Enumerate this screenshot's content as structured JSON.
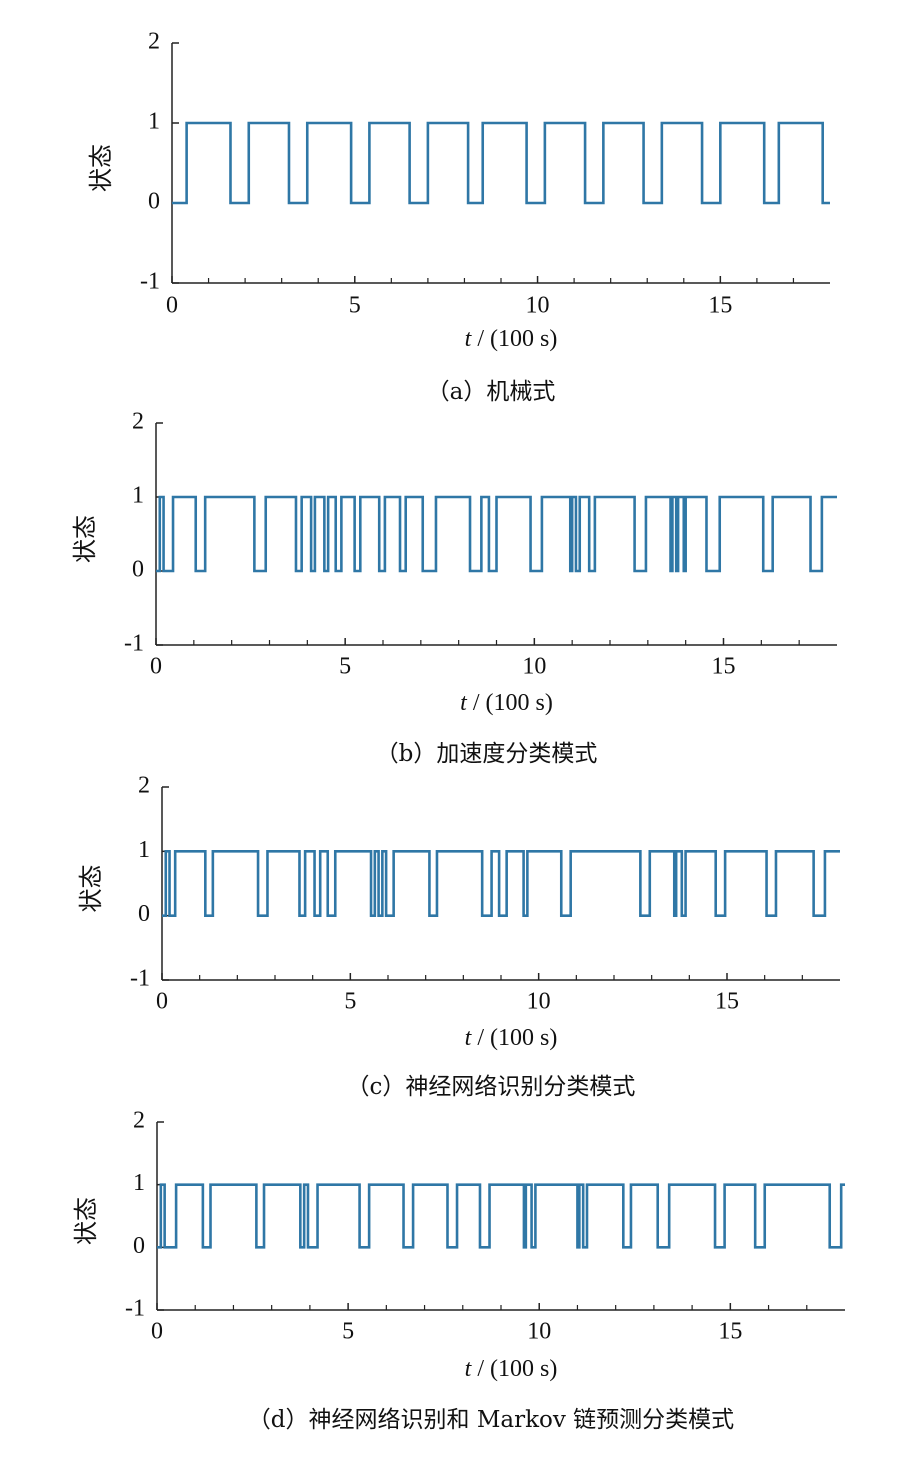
{
  "chart_data": [
    {
      "type": "line",
      "caption": "（a）机械式",
      "ylabel": "状态",
      "xlabel_var": "t",
      "xlabel_unit": "/ (100 s)",
      "xlim": [
        0,
        18
      ],
      "ylim": [
        -1,
        2
      ],
      "xticks": [
        0,
        5,
        10,
        15
      ],
      "xminor_ticks": [
        1,
        2,
        3,
        4,
        6,
        7,
        8,
        9,
        11,
        12,
        13,
        14,
        16,
        17
      ],
      "yticks": [
        -1,
        0,
        1,
        2
      ],
      "series": [
        {
          "color": "#2f77a6",
          "x": [
            0,
            0.4,
            0.4,
            1.6,
            1.6,
            2.1,
            2.1,
            3.2,
            3.2,
            3.7,
            3.7,
            4.9,
            4.9,
            5.4,
            5.4,
            6.5,
            6.5,
            7.0,
            7.0,
            8.1,
            8.1,
            8.5,
            8.5,
            9.7,
            9.7,
            10.2,
            10.2,
            11.3,
            11.3,
            11.8,
            11.8,
            12.9,
            12.9,
            13.4,
            13.4,
            14.5,
            14.5,
            15.0,
            15.0,
            16.2,
            16.2,
            16.6,
            16.6,
            17.8,
            17.8,
            18
          ],
          "values": [
            0,
            0,
            1,
            1,
            0,
            0,
            1,
            1,
            0,
            0,
            1,
            1,
            0,
            0,
            1,
            1,
            0,
            0,
            1,
            1,
            0,
            0,
            1,
            1,
            0,
            0,
            1,
            1,
            0,
            0,
            1,
            1,
            0,
            0,
            1,
            1,
            0,
            0,
            1,
            1,
            0,
            0,
            1,
            1,
            0,
            0
          ]
        }
      ]
    },
    {
      "type": "line",
      "caption": "（b）加速度分类模式",
      "ylabel": "状态",
      "xlabel_var": "t",
      "xlabel_unit": "/ (100 s)",
      "xlim": [
        0,
        18
      ],
      "ylim": [
        -1,
        2
      ],
      "xticks": [
        0,
        5,
        10,
        15
      ],
      "xminor_ticks": [
        1,
        2,
        3,
        4,
        6,
        7,
        8,
        9,
        11,
        12,
        13,
        14,
        16,
        17
      ],
      "yticks": [
        -1,
        0,
        1,
        2
      ],
      "series": [
        {
          "color": "#2f77a6",
          "x": [
            0,
            0.1,
            0.1,
            0.2,
            0.2,
            0.45,
            0.45,
            1.05,
            1.05,
            1.3,
            1.3,
            2.6,
            2.6,
            2.9,
            2.9,
            3.7,
            3.7,
            3.85,
            3.85,
            4.1,
            4.1,
            4.2,
            4.2,
            4.45,
            4.45,
            4.55,
            4.55,
            4.75,
            4.75,
            4.9,
            4.9,
            5.25,
            5.25,
            5.4,
            5.4,
            5.9,
            5.9,
            6.05,
            6.05,
            6.45,
            6.45,
            6.6,
            6.6,
            7.05,
            7.05,
            7.4,
            7.4,
            8.3,
            8.3,
            8.6,
            8.6,
            8.8,
            8.8,
            9.0,
            9.0,
            9.9,
            9.9,
            10.2,
            10.2,
            10.95,
            10.95,
            11.0,
            11.0,
            11.1,
            11.1,
            11.2,
            11.2,
            11.45,
            11.45,
            11.6,
            11.6,
            12.65,
            12.65,
            12.95,
            12.95,
            13.6,
            13.6,
            13.65,
            13.65,
            13.75,
            13.75,
            13.8,
            13.8,
            13.95,
            13.95,
            14.0,
            14.0,
            14.55,
            14.55,
            14.9,
            14.9,
            16.05,
            16.05,
            16.3,
            16.3,
            17.3,
            17.3,
            17.6,
            17.6,
            18
          ],
          "values": [
            0,
            0,
            1,
            1,
            0,
            0,
            1,
            1,
            0,
            0,
            1,
            1,
            0,
            0,
            1,
            1,
            0,
            0,
            1,
            1,
            0,
            0,
            1,
            1,
            0,
            0,
            1,
            1,
            0,
            0,
            1,
            1,
            0,
            0,
            1,
            1,
            0,
            0,
            1,
            1,
            0,
            0,
            1,
            1,
            0,
            0,
            1,
            1,
            0,
            0,
            1,
            1,
            0,
            0,
            1,
            1,
            0,
            0,
            1,
            1,
            0,
            0,
            1,
            1,
            0,
            0,
            1,
            1,
            0,
            0,
            1,
            1,
            0,
            0,
            1,
            1,
            0,
            0,
            1,
            1,
            0,
            0,
            1,
            1,
            0,
            0,
            1,
            1,
            0,
            0,
            1,
            1,
            0,
            0,
            1,
            1,
            0,
            0,
            1,
            1
          ]
        }
      ]
    },
    {
      "type": "line",
      "caption": "（c）神经网络识别分类模式",
      "ylabel": "状态",
      "xlabel_var": "t",
      "xlabel_unit": "/ (100 s)",
      "xlim": [
        0,
        18
      ],
      "ylim": [
        -1,
        2
      ],
      "xticks": [
        0,
        5,
        10,
        15
      ],
      "xminor_ticks": [
        1,
        2,
        3,
        4,
        6,
        7,
        8,
        9,
        11,
        12,
        13,
        14,
        16,
        17
      ],
      "yticks": [
        -1,
        0,
        1,
        2
      ],
      "series": [
        {
          "color": "#2f77a6",
          "x": [
            0,
            0.1,
            0.1,
            0.2,
            0.2,
            0.35,
            0.35,
            1.15,
            1.15,
            1.35,
            1.35,
            2.55,
            2.55,
            2.8,
            2.8,
            3.65,
            3.65,
            3.8,
            3.8,
            4.05,
            4.05,
            4.2,
            4.2,
            4.4,
            4.4,
            4.6,
            4.6,
            5.55,
            5.55,
            5.65,
            5.65,
            5.75,
            5.75,
            5.85,
            5.85,
            5.95,
            5.95,
            6.15,
            6.15,
            7.1,
            7.1,
            7.3,
            7.3,
            8.5,
            8.5,
            8.75,
            8.75,
            8.95,
            8.95,
            9.15,
            9.15,
            9.6,
            9.6,
            9.7,
            9.7,
            10.6,
            10.6,
            10.85,
            10.85,
            12.7,
            12.7,
            12.95,
            12.95,
            13.6,
            13.6,
            13.65,
            13.65,
            13.8,
            13.8,
            13.9,
            13.9,
            14.7,
            14.7,
            14.95,
            14.95,
            16.05,
            16.05,
            16.3,
            16.3,
            17.3,
            17.3,
            17.6,
            17.6,
            18
          ],
          "values": [
            0,
            0,
            1,
            1,
            0,
            0,
            1,
            1,
            0,
            0,
            1,
            1,
            0,
            0,
            1,
            1,
            0,
            0,
            1,
            1,
            0,
            0,
            1,
            1,
            0,
            0,
            1,
            1,
            0,
            0,
            1,
            1,
            0,
            0,
            1,
            1,
            0,
            0,
            1,
            1,
            0,
            0,
            1,
            1,
            0,
            0,
            1,
            1,
            0,
            0,
            1,
            1,
            0,
            0,
            1,
            1,
            0,
            0,
            1,
            1,
            0,
            0,
            1,
            1,
            0,
            0,
            1,
            1,
            0,
            0,
            1,
            1,
            0,
            0,
            1,
            1,
            0,
            0,
            1,
            1,
            0,
            0,
            1,
            1
          ]
        }
      ]
    },
    {
      "type": "line",
      "caption": "（d）神经网络识别和 Markov 链预测分类模式",
      "ylabel": "状态",
      "xlabel_var": "t",
      "xlabel_unit": "/ (100 s)",
      "xlim": [
        0,
        18
      ],
      "ylim": [
        -1,
        2
      ],
      "xticks": [
        0,
        5,
        10,
        15
      ],
      "xminor_ticks": [
        1,
        2,
        3,
        4,
        6,
        7,
        8,
        9,
        11,
        12,
        13,
        14,
        16,
        17
      ],
      "yticks": [
        -1,
        0,
        1,
        2
      ],
      "series": [
        {
          "color": "#2f77a6",
          "x": [
            0,
            0.1,
            0.1,
            0.2,
            0.2,
            0.5,
            0.5,
            1.2,
            1.2,
            1.4,
            1.4,
            2.6,
            2.6,
            2.8,
            2.8,
            3.75,
            3.75,
            3.85,
            3.85,
            3.95,
            3.95,
            4.2,
            4.2,
            5.3,
            5.3,
            5.55,
            5.55,
            6.45,
            6.45,
            6.7,
            6.7,
            7.6,
            7.6,
            7.85,
            7.85,
            8.45,
            8.45,
            8.7,
            8.7,
            9.6,
            9.6,
            9.65,
            9.65,
            9.8,
            9.8,
            9.9,
            9.9,
            11.0,
            11.0,
            11.05,
            11.05,
            11.15,
            11.15,
            11.25,
            11.25,
            12.2,
            12.2,
            12.4,
            12.4,
            13.1,
            13.1,
            13.4,
            13.4,
            14.6,
            14.6,
            14.85,
            14.85,
            15.65,
            15.65,
            15.9,
            15.9,
            17.6,
            17.6,
            17.9,
            17.9,
            18
          ],
          "values": [
            0,
            0,
            1,
            1,
            0,
            0,
            1,
            1,
            0,
            0,
            1,
            1,
            0,
            0,
            1,
            1,
            0,
            0,
            1,
            1,
            0,
            0,
            1,
            1,
            0,
            0,
            1,
            1,
            0,
            0,
            1,
            1,
            0,
            0,
            1,
            1,
            0,
            0,
            1,
            1,
            0,
            0,
            1,
            1,
            0,
            0,
            1,
            1,
            0,
            0,
            1,
            1,
            0,
            0,
            1,
            1,
            0,
            0,
            1,
            1,
            0,
            0,
            1,
            1,
            0,
            0,
            1,
            1,
            0,
            0,
            1,
            1,
            0,
            0,
            1,
            1
          ]
        }
      ]
    }
  ]
}
